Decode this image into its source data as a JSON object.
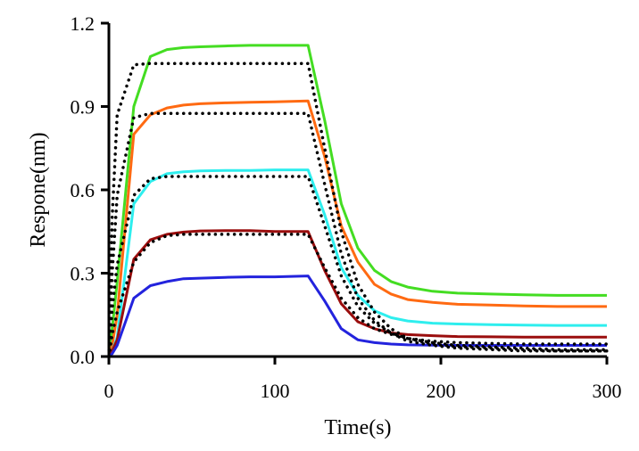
{
  "chart_data": {
    "type": "line",
    "title": "",
    "xlabel": "Time(s)",
    "ylabel": "Respone(nm)",
    "xlim": [
      0,
      300
    ],
    "ylim": [
      0,
      1.2
    ],
    "xticks": [
      0,
      100,
      200,
      300
    ],
    "yticks": [
      0.0,
      0.3,
      0.6,
      0.9,
      1.2
    ],
    "xtick_labels": [
      "0",
      "100",
      "200",
      "300"
    ],
    "ytick_labels": [
      "0.0",
      "0.3",
      "0.6",
      "0.9",
      "1.2"
    ],
    "grid": false,
    "legend": "none",
    "association_end": 120,
    "series": [
      {
        "style": "solid",
        "color": "#44dd22",
        "values": [
          0,
          0.1,
          0.27,
          0.9,
          1.08,
          1.105,
          1.112,
          1.115,
          1.118,
          1.12,
          1.12,
          1.12,
          0.85,
          0.55,
          0.39,
          0.31,
          0.27,
          0.25,
          0.235,
          0.228,
          0.225,
          0.222,
          0.22,
          0.22
        ]
      },
      {
        "style": "solid",
        "color": "#ff6a12",
        "values": [
          0,
          0.04,
          0.15,
          0.8,
          0.87,
          0.895,
          0.905,
          0.91,
          0.913,
          0.915,
          0.917,
          0.92,
          0.72,
          0.47,
          0.34,
          0.26,
          0.225,
          0.205,
          0.195,
          0.188,
          0.185,
          0.182,
          0.18,
          0.18
        ]
      },
      {
        "style": "solid",
        "color": "#2eeeee",
        "values": [
          0,
          0.02,
          0.07,
          0.55,
          0.63,
          0.658,
          0.665,
          0.668,
          0.67,
          0.67,
          0.672,
          0.672,
          0.51,
          0.32,
          0.22,
          0.165,
          0.14,
          0.128,
          0.12,
          0.117,
          0.115,
          0.113,
          0.112,
          0.112
        ]
      },
      {
        "style": "solid",
        "color": "#9a0d0d",
        "values": [
          0,
          0.02,
          0.06,
          0.35,
          0.42,
          0.44,
          0.448,
          0.452,
          0.453,
          0.453,
          0.45,
          0.45,
          0.31,
          0.19,
          0.125,
          0.1,
          0.085,
          0.079,
          0.075,
          0.072,
          0.071,
          0.07,
          0.07,
          0.07
        ]
      },
      {
        "style": "solid",
        "color": "#2323dd",
        "values": [
          0,
          0.01,
          0.04,
          0.21,
          0.255,
          0.27,
          0.28,
          0.282,
          0.285,
          0.287,
          0.287,
          0.29,
          0.2,
          0.1,
          0.06,
          0.05,
          0.045,
          0.042,
          0.041,
          0.04,
          0.04,
          0.04,
          0.04,
          0.04
        ]
      },
      {
        "style": "dotted",
        "color": "#000000",
        "values": [
          0,
          0.5,
          0.87,
          1.05,
          1.055,
          1.055,
          1.055,
          1.055,
          1.055,
          1.055,
          1.055,
          1.055,
          0.75,
          0.45,
          0.26,
          0.16,
          0.1,
          0.065,
          0.045,
          0.035,
          0.03,
          0.025,
          0.02,
          0.02
        ]
      },
      {
        "style": "dotted",
        "color": "#000000",
        "values": [
          0,
          0.3,
          0.58,
          0.86,
          0.875,
          0.875,
          0.875,
          0.875,
          0.875,
          0.875,
          0.875,
          0.875,
          0.62,
          0.37,
          0.21,
          0.13,
          0.085,
          0.055,
          0.04,
          0.03,
          0.025,
          0.02,
          0.02,
          0.02
        ]
      },
      {
        "style": "dotted",
        "color": "#000000",
        "values": [
          0,
          0.17,
          0.33,
          0.58,
          0.64,
          0.648,
          0.648,
          0.648,
          0.648,
          0.648,
          0.648,
          0.648,
          0.47,
          0.29,
          0.18,
          0.12,
          0.085,
          0.065,
          0.05,
          0.04,
          0.035,
          0.03,
          0.025,
          0.025
        ]
      },
      {
        "style": "dotted",
        "color": "#000000",
        "values": [
          0,
          0.08,
          0.16,
          0.34,
          0.41,
          0.435,
          0.44,
          0.44,
          0.44,
          0.44,
          0.44,
          0.44,
          0.32,
          0.21,
          0.14,
          0.1,
          0.08,
          0.065,
          0.055,
          0.05,
          0.047,
          0.045,
          0.045,
          0.045
        ]
      }
    ],
    "x": [
      0,
      2,
      5,
      15,
      25,
      35,
      45,
      55,
      70,
      85,
      100,
      120,
      130,
      140,
      150,
      160,
      170,
      180,
      195,
      210,
      230,
      250,
      270,
      300
    ]
  }
}
